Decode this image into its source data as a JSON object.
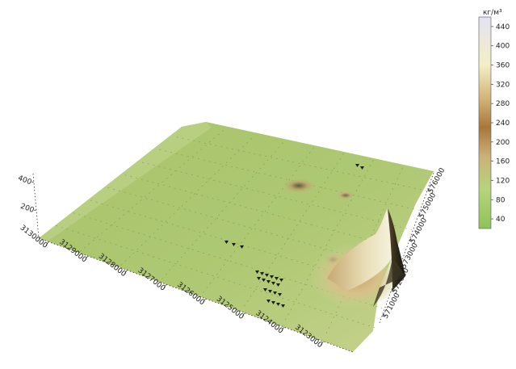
{
  "chart_data": {
    "type": "surface",
    "x_ticks": [
      "3130000",
      "3129000",
      "3128000",
      "3127000",
      "3126000",
      "3125000",
      "3124000",
      "3123000"
    ],
    "y_ticks": [
      "571000",
      "572000",
      "573000",
      "574000",
      "575000",
      "576000"
    ],
    "z_ticks": [
      "200",
      "400"
    ],
    "colorbar": {
      "unit": "кг/м³",
      "min": 20,
      "max": 460,
      "ticks": [
        "40",
        "80",
        "120",
        "160",
        "200",
        "240",
        "280",
        "320",
        "360",
        "400",
        "440"
      ],
      "tick_values": [
        40,
        80,
        120,
        160,
        200,
        240,
        280,
        320,
        360,
        400,
        440
      ],
      "stops": [
        {
          "value": 20,
          "color": "#8dc35a"
        },
        {
          "value": 100,
          "color": "#b6d47b"
        },
        {
          "value": 170,
          "color": "#cbb179"
        },
        {
          "value": 230,
          "color": "#a9763a"
        },
        {
          "value": 290,
          "color": "#d1b478"
        },
        {
          "value": 360,
          "color": "#f3efc6"
        },
        {
          "value": 460,
          "color": "#e4e2f2"
        }
      ]
    },
    "surface_base_color": "#a6c36a"
  }
}
